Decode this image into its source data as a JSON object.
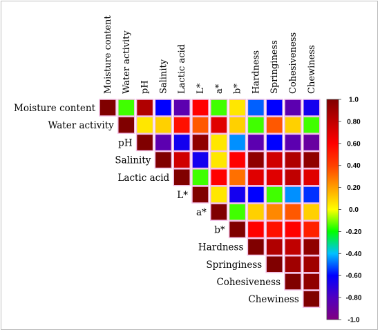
{
  "chart_data": {
    "type": "heatmap",
    "layout": "upper-triangle correlation matrix",
    "variables": [
      "Moisture content",
      "Water activity",
      "pH",
      "Salinity",
      "Lactic acid",
      "L*",
      "a*",
      "b*",
      "Hardness",
      "Springiness",
      "Cohesiveness",
      "Chewiness"
    ],
    "matrix": [
      [
        1.0,
        -0.15,
        0.85,
        -0.6,
        -0.85,
        0.6,
        -0.15,
        0.05,
        -0.5,
        -0.6,
        -0.85,
        -0.65
      ],
      [
        null,
        1.0,
        0.05,
        0.1,
        0.55,
        0.35,
        0.7,
        0.1,
        -0.15,
        0.35,
        0.1,
        -0.15
      ],
      [
        null,
        null,
        1.0,
        -0.85,
        -0.65,
        0.95,
        0.05,
        -0.45,
        -0.85,
        -0.6,
        -0.85,
        -0.9
      ],
      [
        null,
        null,
        null,
        1.0,
        0.75,
        -0.65,
        0.05,
        0.6,
        0.95,
        0.75,
        0.85,
        0.95
      ],
      [
        null,
        null,
        null,
        null,
        1.0,
        -0.15,
        0.6,
        0.3,
        0.7,
        0.7,
        0.8,
        0.7
      ],
      [
        null,
        null,
        null,
        null,
        null,
        1.0,
        0.05,
        -0.65,
        -0.6,
        -0.15,
        -0.45,
        -0.55
      ],
      [
        null,
        null,
        null,
        null,
        null,
        null,
        1.0,
        -0.15,
        0.1,
        0.25,
        0.35,
        0.1
      ],
      [
        null,
        null,
        null,
        null,
        null,
        null,
        null,
        1.0,
        0.6,
        0.55,
        0.6,
        0.5
      ],
      [
        null,
        null,
        null,
        null,
        null,
        null,
        null,
        null,
        1.0,
        0.85,
        0.8,
        0.95
      ],
      [
        null,
        null,
        null,
        null,
        null,
        null,
        null,
        null,
        null,
        1.0,
        0.9,
        0.9
      ],
      [
        null,
        null,
        null,
        null,
        null,
        null,
        null,
        null,
        null,
        null,
        1.0,
        0.95
      ],
      [
        null,
        null,
        null,
        null,
        null,
        null,
        null,
        null,
        null,
        null,
        null,
        1.0
      ]
    ],
    "colorbar": {
      "range": [
        -1.0,
        1.0
      ],
      "ticks": [
        1.0,
        0.8,
        0.6,
        0.4,
        0.2,
        0.0,
        -0.2,
        -0.4,
        -0.6,
        -0.8,
        -1.0
      ],
      "tick_labels": [
        "1.0",
        "0.80",
        "0.60",
        "0.40",
        "0.20",
        "0.0",
        "-0.20",
        "-0.40",
        "-0.60",
        "-0.80",
        "-1.0"
      ],
      "colormap": [
        [
          -1.0,
          "#800080"
        ],
        [
          -0.8,
          "#5000c0"
        ],
        [
          -0.6,
          "#0000ff"
        ],
        [
          -0.4,
          "#00c0ff"
        ],
        [
          -0.2,
          "#00ff00"
        ],
        [
          0.0,
          "#ffff00"
        ],
        [
          0.2,
          "#ffa000"
        ],
        [
          0.4,
          "#ff4000"
        ],
        [
          0.6,
          "#ff0000"
        ],
        [
          0.8,
          "#c00000"
        ],
        [
          1.0,
          "#800000"
        ]
      ],
      "placement": "right"
    },
    "cell_border_color": "#f3c1e8"
  }
}
